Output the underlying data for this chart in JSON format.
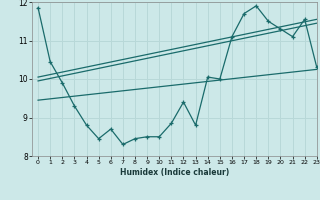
{
  "xlabel": "Humidex (Indice chaleur)",
  "x_values": [
    0,
    1,
    2,
    3,
    4,
    5,
    6,
    7,
    8,
    9,
    10,
    11,
    12,
    13,
    14,
    15,
    16,
    17,
    18,
    19,
    20,
    21,
    22,
    23
  ],
  "y_main": [
    11.85,
    10.45,
    9.9,
    9.3,
    8.8,
    8.45,
    8.7,
    8.3,
    8.45,
    8.5,
    8.5,
    8.85,
    9.4,
    8.8,
    10.05,
    10.0,
    11.1,
    11.7,
    11.9,
    11.5,
    11.3,
    11.1,
    11.55,
    10.3
  ],
  "trend_line1_start": 10.05,
  "trend_line1_end": 11.55,
  "trend_line2_start": 9.95,
  "trend_line2_end": 11.45,
  "trend_line3_start": 9.45,
  "trend_line3_end": 10.25,
  "bg_color": "#cce8e8",
  "grid_color": "#b8d8d8",
  "line_color": "#1a6b6b",
  "ylim": [
    8,
    12
  ],
  "xlim": [
    -0.5,
    23
  ],
  "yticks": [
    8,
    9,
    10,
    11,
    12
  ],
  "xticks": [
    0,
    1,
    2,
    3,
    4,
    5,
    6,
    7,
    8,
    9,
    10,
    11,
    12,
    13,
    14,
    15,
    16,
    17,
    18,
    19,
    20,
    21,
    22,
    23
  ]
}
